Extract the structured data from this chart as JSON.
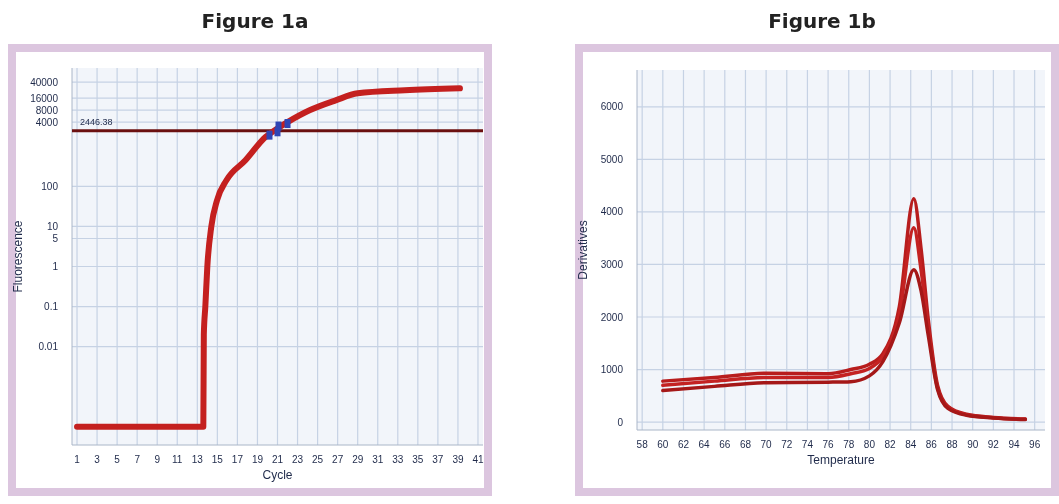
{
  "chart_data": [
    {
      "type": "line",
      "title": "Figure 1a",
      "xlabel": "Cycle",
      "ylabel": "Fluorescence",
      "log": "y",
      "grid": true,
      "xlim": [
        0.5,
        41.5
      ],
      "ylim": [
        3.5e-05,
        90000
      ],
      "xticks": [
        1,
        3,
        5,
        7,
        9,
        11,
        13,
        15,
        17,
        19,
        21,
        23,
        25,
        27,
        29,
        31,
        33,
        35,
        37,
        39,
        41
      ],
      "yticks": [
        0.01,
        0.1,
        1,
        5,
        10,
        100,
        4000,
        8000,
        16000,
        40000
      ],
      "ref_lines": [
        {
          "axis": "y",
          "value": 2446.38,
          "label": "2446.38",
          "color": "#6b1010"
        }
      ],
      "series": [
        {
          "color": "#c4201f",
          "x": [
            1,
            13.6,
            13.65,
            13.8,
            14.0,
            14.4,
            14.97,
            15.9,
            17.8,
            19.8,
            21.0,
            22.0,
            24.2,
            26.8,
            29.0,
            33.7,
            39.2
          ],
          "values": [
            0.0001,
            0.0001,
            0.02,
            0.1,
            1,
            10,
            45,
            141,
            447,
            1700,
            2800,
            4000,
            7900,
            14000,
            21000,
            25000,
            28000
          ]
        },
        {
          "type": "scatter",
          "marker": "square",
          "color": "#2f45b5",
          "x": [
            20.2,
            21.0,
            21.1,
            22.0
          ],
          "values": [
            1900,
            2300,
            3200,
            3700
          ]
        }
      ]
    },
    {
      "type": "line",
      "title": "Figure 1b",
      "xlabel": "Temperature",
      "ylabel": "Derivatives",
      "grid": true,
      "xlim": [
        57.5,
        97
      ],
      "ylim": [
        -150,
        6700
      ],
      "xticks": [
        58,
        60,
        62,
        64,
        66,
        68,
        70,
        72,
        74,
        76,
        78,
        80,
        82,
        84,
        86,
        88,
        90,
        92,
        94,
        96
      ],
      "yticks": [
        0,
        1000,
        2000,
        3000,
        4000,
        5000,
        6000
      ],
      "series": [
        {
          "color": "#b81d1d",
          "x": [
            60,
            65,
            70,
            76,
            78.2,
            80,
            81.3,
            82.9,
            84.3,
            85.0,
            85.7,
            86.6,
            87.6,
            89.4,
            92,
            95.1
          ],
          "values": [
            780,
            850,
            930,
            920,
            1000,
            1100,
            1300,
            2200,
            4250,
            3300,
            1950,
            700,
            300,
            150,
            90,
            60
          ]
        },
        {
          "color": "#c42222",
          "x": [
            60,
            65,
            70,
            76,
            78.2,
            80,
            81.3,
            82.9,
            84.3,
            85.0,
            85.7,
            86.6,
            87.6,
            89.4,
            92,
            95.1
          ],
          "values": [
            700,
            780,
            850,
            850,
            920,
            1020,
            1250,
            2050,
            3700,
            2900,
            1800,
            650,
            280,
            140,
            85,
            55
          ]
        },
        {
          "color": "#a51818",
          "x": [
            60,
            65,
            70,
            76,
            78.2,
            80,
            81.3,
            82.9,
            84.3,
            85.0,
            85.7,
            86.6,
            87.6,
            89.4,
            92,
            95.1
          ],
          "values": [
            600,
            680,
            750,
            760,
            770,
            880,
            1150,
            1890,
            2900,
            2500,
            1650,
            620,
            260,
            130,
            80,
            50
          ]
        }
      ]
    }
  ]
}
